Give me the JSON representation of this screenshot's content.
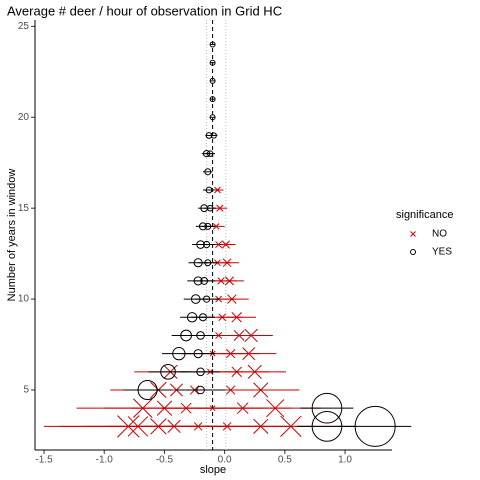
{
  "chart_data": {
    "type": "scatter",
    "title": "Average # deer / hour of observation in Grid HC",
    "xlabel": "slope",
    "ylabel": "Number of years in window",
    "legend_title": "significance",
    "legend": "right",
    "xlim": [
      -1.575,
      1.39
    ],
    "ylim": [
      1.7,
      25.35
    ],
    "xticks": [
      {
        "value": -1.5,
        "label": "-1.5"
      },
      {
        "value": -1,
        "label": "-1.0"
      },
      -0.5,
      {
        "value": 0,
        "label": "0.0"
      },
      0.5,
      {
        "value": 1,
        "label": "1.0"
      }
    ],
    "yticks": [
      5,
      10,
      15,
      20,
      25
    ],
    "vline": -0.1,
    "vline_band": [
      -0.15,
      0.01
    ],
    "series": [
      {
        "name": "NO",
        "color": "#cc0000",
        "marker": "x",
        "x": [
          -0.8,
          -0.72,
          -0.55,
          -0.42,
          -0.22,
          0.02,
          0.3,
          0.55,
          -0.68,
          -0.5,
          -0.32,
          -0.1,
          0.15,
          0.42,
          -0.55,
          -0.4,
          -0.25,
          0.05,
          0.3,
          -0.45,
          -0.12,
          0.1,
          0.25,
          -0.1,
          0.05,
          0.2,
          -0.05,
          0.12,
          0.22,
          -0.02,
          0.1,
          -0.05,
          0.06,
          -0.03,
          0.04,
          -0.06,
          0.02,
          -0.05,
          0.01,
          -0.07,
          -0.04,
          -0.06
        ],
        "y": [
          3,
          3,
          3,
          3,
          3,
          3,
          3,
          3,
          4,
          4,
          4,
          4,
          4,
          4,
          5,
          5,
          5,
          5,
          5,
          6,
          6,
          6,
          6,
          7,
          7,
          7,
          8,
          8,
          8,
          9,
          9,
          10,
          10,
          11,
          11,
          12,
          12,
          13,
          13,
          14,
          15,
          16
        ],
        "error": [
          0.7,
          0.65,
          0.6,
          0.55,
          0.5,
          0.5,
          0.45,
          0.42,
          0.55,
          0.5,
          0.45,
          0.42,
          0.4,
          0.38,
          0.4,
          0.38,
          0.36,
          0.34,
          0.32,
          0.3,
          0.28,
          0.27,
          0.26,
          0.25,
          0.24,
          0.23,
          0.2,
          0.19,
          0.18,
          0.17,
          0.16,
          0.15,
          0.14,
          0.13,
          0.12,
          0.11,
          0.1,
          0.09,
          0.08,
          0.07,
          0.06,
          0.05
        ]
      },
      {
        "name": "YES",
        "color": "#000000",
        "marker": "o",
        "x": [
          -0.1,
          -0.1,
          -0.1,
          -0.1,
          -0.1,
          -0.13,
          -0.09,
          -0.15,
          -0.12,
          -0.14,
          -0.13,
          -0.17,
          -0.12,
          -0.18,
          -0.14,
          -0.2,
          -0.15,
          -0.22,
          -0.14,
          -0.22,
          -0.17,
          -0.24,
          -0.15,
          -0.27,
          -0.18,
          -0.32,
          -0.2,
          -0.38,
          -0.22,
          -0.47,
          -0.2,
          -0.64,
          -0.2,
          0.85,
          0.85,
          1.25
        ],
        "y": [
          24,
          23,
          22,
          21,
          20,
          19,
          19,
          18,
          18,
          17,
          16,
          15,
          15,
          14,
          14,
          13,
          13,
          12,
          12,
          11,
          11,
          10,
          10,
          9,
          9,
          8,
          8,
          7,
          7,
          6,
          6,
          5,
          5,
          4,
          3,
          3
        ],
        "error": [
          0.02,
          0.02,
          0.02,
          0.02,
          0.02,
          0.03,
          0.03,
          0.04,
          0.04,
          0.04,
          0.05,
          0.05,
          0.05,
          0.06,
          0.06,
          0.07,
          0.07,
          0.08,
          0.08,
          0.09,
          0.09,
          0.1,
          0.1,
          0.1,
          0.1,
          0.12,
          0.12,
          0.14,
          0.14,
          0.16,
          0.16,
          0.2,
          0.2,
          0.22,
          0.25,
          0.3
        ]
      }
    ]
  }
}
